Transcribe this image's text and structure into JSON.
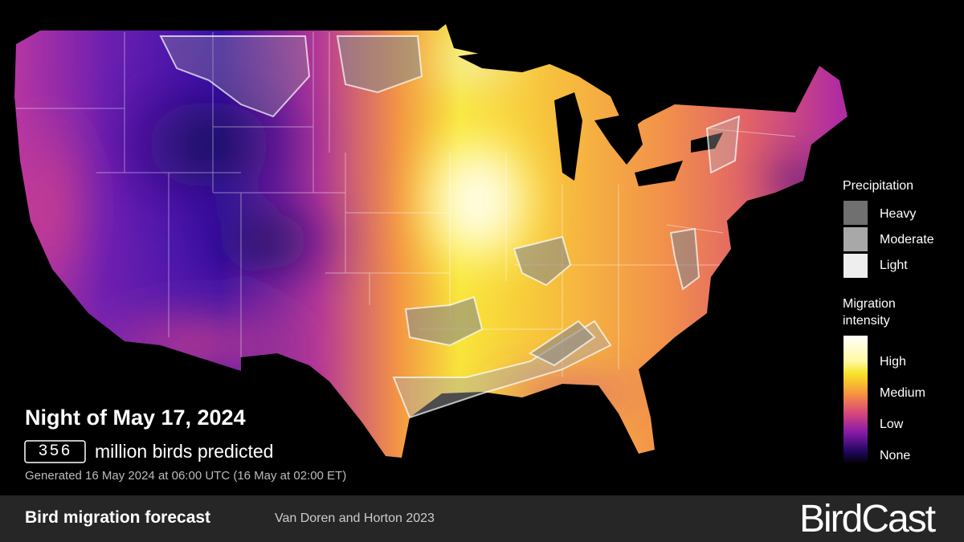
{
  "header": {
    "title": "Night of May 17, 2024",
    "count": 356,
    "count_label": "million birds predicted",
    "generated": "Generated 16 May 2024 at 06:00 UTC (16 May at 02:00 ET)"
  },
  "legend": {
    "precipitation": {
      "title": "Precipitation",
      "items": [
        "Heavy",
        "Moderate",
        "Light"
      ]
    },
    "migration": {
      "title": "Migration intensity",
      "items": [
        "High",
        "Medium",
        "Low",
        "None"
      ]
    }
  },
  "footer": {
    "title": "Bird migration forecast",
    "citation": "Van Doren and Horton 2023",
    "brand": "BirdCast"
  }
}
